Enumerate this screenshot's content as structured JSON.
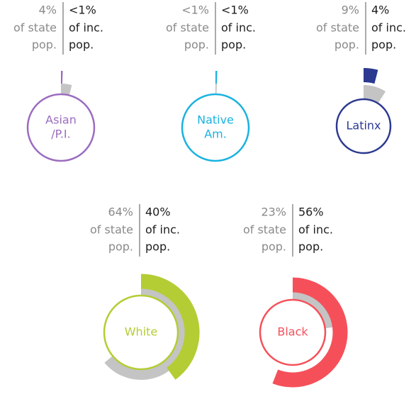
{
  "chart_data": {
    "type": "radial",
    "ring_color": "#c4c4c4",
    "groups": [
      {
        "label": [
          "Asian",
          "/P.I."
        ],
        "color": "#9b6cc0",
        "state_pop": 4,
        "state_label": "4%",
        "state_caption": [
          "of state",
          "pop."
        ],
        "inc_pop": 0.5,
        "inc_label": "<1%",
        "inc_caption": [
          "of inc.",
          "pop."
        ]
      },
      {
        "label": [
          "Native",
          "Am."
        ],
        "color": "#1ab2e0",
        "state_pop": 0.5,
        "state_label": "<1%",
        "state_caption": [
          "of state",
          "pop."
        ],
        "inc_pop": 0.5,
        "inc_label": "<1%",
        "inc_caption": [
          "of inc.",
          "pop."
        ]
      },
      {
        "label": [
          "Latinx"
        ],
        "color": "#2b3990",
        "state_pop": 9,
        "state_label": "9%",
        "state_caption": [
          "of state",
          "pop."
        ],
        "inc_pop": 4,
        "inc_label": "4%",
        "inc_caption": [
          "of inc.",
          "pop."
        ]
      },
      {
        "label": [
          "White"
        ],
        "color": "#b4cd34",
        "state_pop": 64,
        "state_label": "64%",
        "state_caption": [
          "of state",
          "pop."
        ],
        "inc_pop": 40,
        "inc_label": "40%",
        "inc_caption": [
          "of inc.",
          "pop."
        ]
      },
      {
        "label": [
          "Black"
        ],
        "color": "#f5505a",
        "state_pop": 23,
        "state_label": "23%",
        "state_caption": [
          "of state",
          "pop."
        ],
        "inc_pop": 56,
        "inc_label": "56%",
        "inc_caption": [
          "of inc.",
          "pop."
        ]
      }
    ]
  }
}
